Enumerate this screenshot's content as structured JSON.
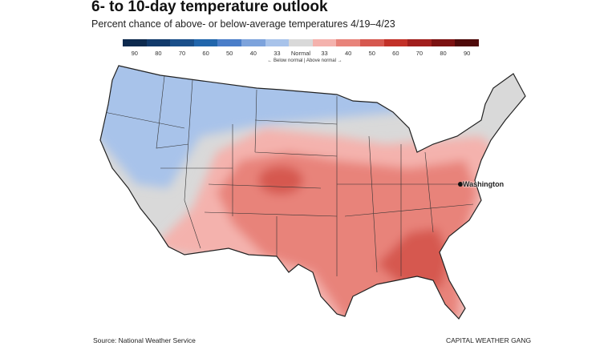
{
  "header": {
    "title": "6- to 10-day temperature outlook",
    "subtitle": "Percent chance of above- or below-average temperatures 4/19–4/23"
  },
  "legend": {
    "colors": [
      "#0d2a4e",
      "#123a6b",
      "#1a4f8a",
      "#2166ac",
      "#4a7ec9",
      "#7da3dc",
      "#a8c3ea",
      "#d9d9d9",
      "#f4b2ad",
      "#e8837a",
      "#d6584f",
      "#c23128",
      "#a11f1d",
      "#7c1212",
      "#4f0a0a"
    ],
    "labels": [
      "90",
      "80",
      "70",
      "60",
      "50",
      "40",
      "33",
      "Normal",
      "33",
      "40",
      "50",
      "60",
      "70",
      "80",
      "90"
    ],
    "note": "← Below normal | Above normal →"
  },
  "map": {
    "city": "Washington"
  },
  "footer": {
    "source": "Source: National Weather Service",
    "brand": "CAPITAL WEATHER GANG"
  }
}
